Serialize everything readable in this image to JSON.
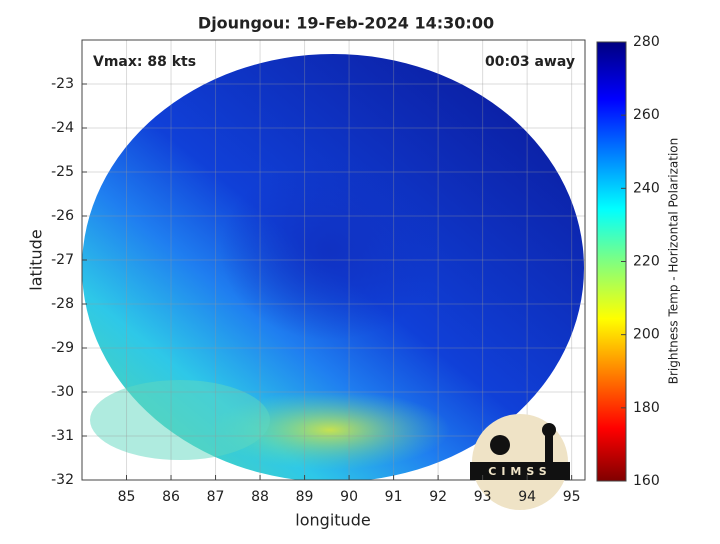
{
  "chart_data": {
    "type": "heatmap",
    "title": "Djoungou: 19-Feb-2024 14:30:00",
    "x_label": "longitude",
    "y_label": "latitude",
    "xlim": [
      84,
      95.3
    ],
    "xticks": [
      85,
      86,
      87,
      88,
      89,
      90,
      91,
      92,
      93,
      94,
      95
    ],
    "ylim": [
      -32,
      -22
    ],
    "yticks": [
      -23,
      -24,
      -25,
      -26,
      -27,
      -28,
      -29,
      -30,
      -31,
      -32
    ],
    "grid": true,
    "annotations": [
      "Vmax: 88 kts",
      "00:03 away"
    ],
    "colorbar": {
      "label": "Brightness Temp - Horizontal Polarization",
      "lim": [
        160,
        280
      ],
      "ticks": [
        160,
        180,
        200,
        220,
        240,
        260,
        280
      ]
    },
    "logo": "CIMSS"
  }
}
